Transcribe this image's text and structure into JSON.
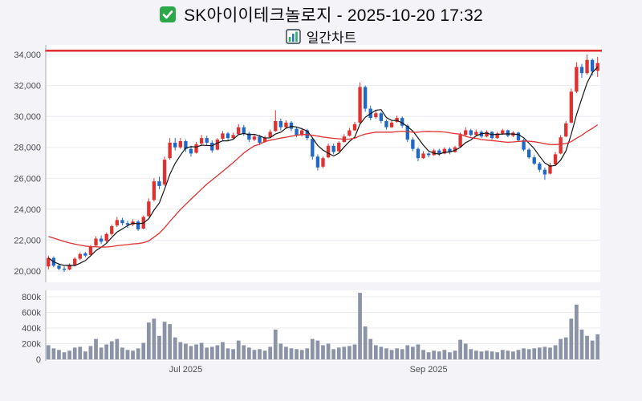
{
  "header": {
    "title": "SK아이이테크놀로지 - 2025-10-20 17:32",
    "subtitle": "일간차트",
    "icons": {
      "title_icon": "green-checkbox-icon",
      "subtitle_icon": "bar-chart-icon"
    }
  },
  "chart_data": {
    "type": "candlestick",
    "title": "SK아이이테크놀로지 - 2025-10-20 17:32",
    "subtitle": "일간차트",
    "price_axis": {
      "min": 20000,
      "max": 34000,
      "tick_step": 2000
    },
    "volume_axis": {
      "max": 800000,
      "tick_values": [
        0,
        200000,
        400000,
        600000,
        800000
      ],
      "tick_labels": [
        "0",
        "200k",
        "400k",
        "600k",
        "800k"
      ]
    },
    "x_ticks": [
      {
        "index": 26,
        "label": "Jul 2025"
      },
      {
        "index": 72,
        "label": "Sep 2025"
      }
    ],
    "resistance_line": {
      "value": 34250,
      "color": "#e03131"
    },
    "ma_short": {
      "period": 5,
      "color": "#141414"
    },
    "ma_long": {
      "period": 20,
      "color": "#e03131",
      "seed": 22300
    },
    "colors": {
      "up": "#e03131",
      "down": "#2068c8",
      "volume": "#8b93a7"
    },
    "candles_format": [
      "open",
      "high",
      "low",
      "close",
      "volume"
    ],
    "candles": [
      [
        20300,
        21000,
        20100,
        20850,
        180000
      ],
      [
        20850,
        20950,
        20250,
        20350,
        140000
      ],
      [
        20350,
        20500,
        20050,
        20150,
        120000
      ],
      [
        20150,
        20300,
        19950,
        20100,
        90000
      ],
      [
        20100,
        20500,
        20050,
        20400,
        110000
      ],
      [
        20400,
        20900,
        20300,
        20800,
        150000
      ],
      [
        20800,
        21200,
        20700,
        21100,
        160000
      ],
      [
        21150,
        21250,
        20900,
        21000,
        100000
      ],
      [
        21050,
        21700,
        21000,
        21600,
        170000
      ],
      [
        21650,
        22250,
        21550,
        22100,
        260000
      ],
      [
        22100,
        22300,
        21750,
        21900,
        150000
      ],
      [
        21950,
        22500,
        21850,
        22400,
        190000
      ],
      [
        22400,
        23000,
        22300,
        22900,
        230000
      ],
      [
        22950,
        23500,
        22850,
        23300,
        260000
      ],
      [
        23300,
        23450,
        22950,
        23100,
        150000
      ],
      [
        23100,
        23250,
        22800,
        23000,
        120000
      ],
      [
        23000,
        23350,
        22900,
        23200,
        110000
      ],
      [
        23200,
        23300,
        22600,
        22700,
        140000
      ],
      [
        22750,
        23600,
        22700,
        23500,
        210000
      ],
      [
        23550,
        24700,
        23500,
        24500,
        470000
      ],
      [
        24600,
        26000,
        24500,
        25800,
        520000
      ],
      [
        25800,
        26100,
        25300,
        25500,
        300000
      ],
      [
        25600,
        27400,
        25500,
        27200,
        480000
      ],
      [
        27300,
        28600,
        27200,
        28300,
        450000
      ],
      [
        28300,
        28600,
        27800,
        28000,
        280000
      ],
      [
        28000,
        28600,
        27900,
        28400,
        220000
      ],
      [
        28400,
        28500,
        27700,
        27900,
        200000
      ],
      [
        27900,
        28100,
        27400,
        27600,
        170000
      ],
      [
        27650,
        28350,
        27600,
        28200,
        190000
      ],
      [
        28250,
        28800,
        28150,
        28600,
        210000
      ],
      [
        28600,
        28750,
        28150,
        28300,
        150000
      ],
      [
        28300,
        28450,
        27650,
        27800,
        160000
      ],
      [
        27850,
        28600,
        27800,
        28500,
        180000
      ],
      [
        28550,
        29050,
        28450,
        28900,
        220000
      ],
      [
        28900,
        29000,
        28450,
        28600,
        140000
      ],
      [
        28600,
        28950,
        28500,
        28800,
        130000
      ],
      [
        28850,
        29500,
        28800,
        29300,
        240000
      ],
      [
        29300,
        29450,
        28750,
        28900,
        180000
      ],
      [
        28900,
        29000,
        28350,
        28500,
        150000
      ],
      [
        28500,
        28850,
        28400,
        28700,
        120000
      ],
      [
        28700,
        28800,
        28150,
        28300,
        130000
      ],
      [
        28350,
        28750,
        28300,
        28600,
        110000
      ],
      [
        28650,
        29150,
        28600,
        29000,
        160000
      ],
      [
        29050,
        30400,
        29000,
        29700,
        380000
      ],
      [
        29700,
        29850,
        29100,
        29300,
        200000
      ],
      [
        29300,
        29750,
        29200,
        29600,
        160000
      ],
      [
        29600,
        29700,
        29050,
        29200,
        140000
      ],
      [
        29200,
        29300,
        28650,
        28800,
        130000
      ],
      [
        28800,
        29250,
        28700,
        29100,
        120000
      ],
      [
        29100,
        29200,
        28450,
        28600,
        140000
      ],
      [
        28550,
        28650,
        27200,
        27400,
        260000
      ],
      [
        27400,
        27550,
        26500,
        26700,
        240000
      ],
      [
        26750,
        27400,
        26650,
        27300,
        180000
      ],
      [
        27350,
        28250,
        27300,
        28100,
        200000
      ],
      [
        28100,
        28250,
        27550,
        27700,
        130000
      ],
      [
        27750,
        28400,
        27700,
        28300,
        150000
      ],
      [
        28350,
        28850,
        28300,
        28700,
        160000
      ],
      [
        28750,
        29250,
        28700,
        29100,
        170000
      ],
      [
        29100,
        29650,
        29050,
        29500,
        190000
      ],
      [
        29600,
        32200,
        29550,
        31900,
        850000
      ],
      [
        31900,
        32000,
        30300,
        30500,
        420000
      ],
      [
        30500,
        30700,
        29750,
        29900,
        260000
      ],
      [
        29950,
        30400,
        29850,
        30200,
        180000
      ],
      [
        30200,
        30300,
        29550,
        29700,
        160000
      ],
      [
        29700,
        29800,
        29150,
        29300,
        140000
      ],
      [
        29300,
        29700,
        29250,
        29600,
        120000
      ],
      [
        29650,
        30050,
        29600,
        29900,
        140000
      ],
      [
        29900,
        30000,
        29250,
        29400,
        130000
      ],
      [
        29400,
        29500,
        28350,
        28500,
        180000
      ],
      [
        28500,
        28650,
        27750,
        27900,
        160000
      ],
      [
        27900,
        28000,
        27100,
        27300,
        190000
      ],
      [
        27300,
        27750,
        27250,
        27600,
        120000
      ],
      [
        27600,
        27700,
        27350,
        27500,
        90000
      ],
      [
        27500,
        27900,
        27450,
        27800,
        110000
      ],
      [
        27800,
        27900,
        27450,
        27600,
        100000
      ],
      [
        27600,
        28000,
        27550,
        27900,
        120000
      ],
      [
        27900,
        28000,
        27550,
        27700,
        90000
      ],
      [
        27700,
        28100,
        27650,
        28000,
        110000
      ],
      [
        28050,
        28950,
        28000,
        28800,
        250000
      ],
      [
        28800,
        29300,
        28750,
        29100,
        200000
      ],
      [
        29100,
        29200,
        28700,
        28800,
        130000
      ],
      [
        28800,
        29150,
        28750,
        29000,
        110000
      ],
      [
        29000,
        29100,
        28600,
        28700,
        100000
      ],
      [
        28700,
        29100,
        28650,
        29000,
        110000
      ],
      [
        29000,
        29050,
        28500,
        28600,
        100000
      ],
      [
        28600,
        29000,
        28550,
        28900,
        90000
      ],
      [
        28900,
        29200,
        28800,
        29100,
        120000
      ],
      [
        29100,
        29150,
        28650,
        28750,
        110000
      ],
      [
        28750,
        29050,
        28650,
        28950,
        100000
      ],
      [
        28950,
        29000,
        28350,
        28450,
        120000
      ],
      [
        28450,
        28550,
        27750,
        27850,
        140000
      ],
      [
        27850,
        27950,
        27250,
        27350,
        130000
      ],
      [
        27350,
        27500,
        26850,
        26950,
        140000
      ],
      [
        26950,
        27050,
        26400,
        26550,
        150000
      ],
      [
        26550,
        26700,
        25900,
        26250,
        160000
      ],
      [
        26300,
        27000,
        26250,
        26850,
        150000
      ],
      [
        26900,
        27700,
        26850,
        27550,
        180000
      ],
      [
        27600,
        28800,
        27550,
        28650,
        260000
      ],
      [
        28700,
        29700,
        28650,
        29550,
        280000
      ],
      [
        29600,
        31800,
        29550,
        31600,
        520000
      ],
      [
        31600,
        33500,
        31500,
        33200,
        700000
      ],
      [
        33200,
        33400,
        32500,
        32800,
        380000
      ],
      [
        32800,
        34000,
        32700,
        33650,
        300000
      ],
      [
        33650,
        33750,
        32650,
        32900,
        240000
      ],
      [
        32950,
        33850,
        32550,
        33450,
        320000
      ]
    ]
  }
}
